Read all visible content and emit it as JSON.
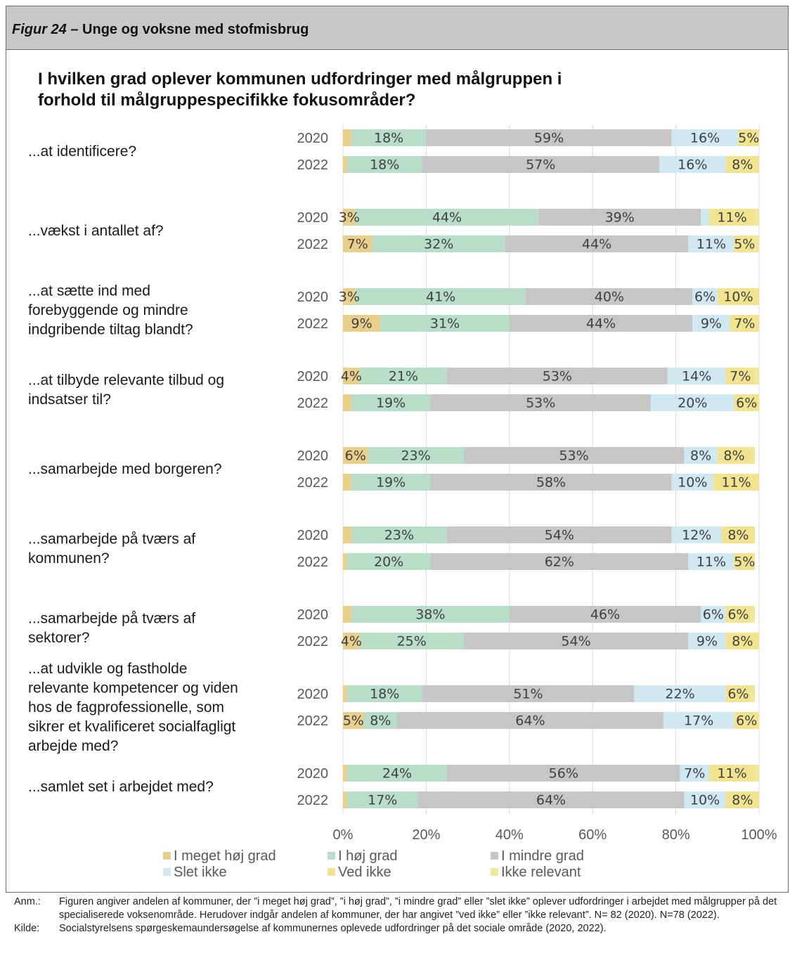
{
  "figure": {
    "number": "Figur 24",
    "dash": " – ",
    "name": "Unge og voksne med stofmisbrug"
  },
  "chart_data": {
    "type": "bar",
    "orientation": "horizontal",
    "stacked": true,
    "title_lines": [
      "I hvilken grad oplever kommunen udfordringer med målgruppen i",
      "forhold til målgruppespecifikke fokusområder?"
    ],
    "groups": [
      {
        "label_lines": [
          "...at identificere?"
        ],
        "rows": [
          {
            "year": "2020",
            "values": [
              2,
              18,
              59,
              16,
              5,
              0
            ]
          },
          {
            "year": "2022",
            "values": [
              1,
              18,
              57,
              16,
              8,
              0
            ]
          }
        ]
      },
      {
        "label_lines": [
          "...vækst i antallet af?"
        ],
        "rows": [
          {
            "year": "2020",
            "values": [
              3,
              44,
              39,
              2,
              11,
              1
            ]
          },
          {
            "year": "2022",
            "values": [
              7,
              32,
              44,
              11,
              5,
              1
            ]
          }
        ]
      },
      {
        "label_lines": [
          "...at sætte ind med",
          "forebyggende og mindre",
          "indgribende tiltag blandt?"
        ],
        "rows": [
          {
            "year": "2020",
            "values": [
              3,
              41,
              40,
              6,
              10,
              0
            ]
          },
          {
            "year": "2022",
            "values": [
              9,
              31,
              44,
              9,
              7,
              0
            ]
          }
        ]
      },
      {
        "label_lines": [
          "...at tilbyde relevante tilbud og",
          "indsatser til?"
        ],
        "rows": [
          {
            "year": "2020",
            "values": [
              4,
              21,
              53,
              14,
              7,
              1
            ]
          },
          {
            "year": "2022",
            "values": [
              2,
              19,
              53,
              20,
              6,
              0
            ]
          }
        ]
      },
      {
        "label_lines": [
          "...samarbejde med borgeren?"
        ],
        "rows": [
          {
            "year": "2020",
            "values": [
              6,
              23,
              53,
              8,
              8,
              1
            ]
          },
          {
            "year": "2022",
            "values": [
              2,
              19,
              58,
              10,
              11,
              0
            ]
          }
        ]
      },
      {
        "label_lines": [
          "...samarbejde på tværs af",
          "kommunen?"
        ],
        "rows": [
          {
            "year": "2020",
            "values": [
              2,
              23,
              54,
              12,
              8,
              0
            ]
          },
          {
            "year": "2022",
            "values": [
              1,
              20,
              62,
              11,
              5,
              0
            ]
          }
        ]
      },
      {
        "label_lines": [
          "...samarbejde på tværs af",
          "sektorer?"
        ],
        "rows": [
          {
            "year": "2020",
            "values": [
              2,
              38,
              46,
              6,
              6,
              1
            ]
          },
          {
            "year": "2022",
            "values": [
              4,
              25,
              54,
              9,
              8,
              0
            ]
          }
        ]
      },
      {
        "label_lines": [
          "...at udvikle og fastholde",
          "relevante kompetencer og viden",
          "hos de fagprofessionelle, som",
          "sikrer et kvalificeret socialfagligt",
          "arbejde med?"
        ],
        "rows": [
          {
            "year": "2020",
            "values": [
              1,
              18,
              51,
              22,
              6,
              1
            ]
          },
          {
            "year": "2022",
            "values": [
              5,
              8,
              64,
              17,
              6,
              0
            ]
          }
        ]
      },
      {
        "label_lines": [
          "...samlet set i arbejdet med?"
        ],
        "rows": [
          {
            "year": "2020",
            "values": [
              1,
              24,
              56,
              7,
              11,
              1
            ]
          },
          {
            "year": "2022",
            "values": [
              1,
              17,
              64,
              10,
              8,
              0
            ]
          }
        ]
      }
    ],
    "series": [
      {
        "name": "I meget høj grad",
        "color": "#e9cf8c"
      },
      {
        "name": "I høj grad",
        "color": "#b8dec9"
      },
      {
        "name": "I mindre grad",
        "color": "#c6c6c6"
      },
      {
        "name": "Slet ikke",
        "color": "#cfe8f2"
      },
      {
        "name": "Ved ikke",
        "color": "#f2e38e"
      },
      {
        "name": "Ikke relevant",
        "color": "#f0e79c"
      }
    ],
    "xlim": [
      0,
      100
    ],
    "x_ticks": [
      "0%",
      "20%",
      "40%",
      "60%",
      "80%",
      "100%"
    ],
    "label_min_value": 3,
    "grid": "vertical"
  },
  "notes": {
    "anm_label": "Anm.:",
    "anm_text": "Figuren angiver andelen af kommuner, der ”i meget høj grad”, ”i høj grad”, ”i mindre grad” eller ”slet ikke” oplever udfordringer i arbejdet med målgrupper på det specialiserede voksenområde. Herudover indgår andelen af kommuner, der har angivet ”ved ikke” eller ”ikke relevant”. N= 82 (2020). N=78 (2022).",
    "kilde_label": "Kilde:",
    "kilde_text": "Socialstyrelsens spørgeskemaundersøgelse af kommunernes oplevede udfordringer på det sociale område (2020, 2022)."
  }
}
